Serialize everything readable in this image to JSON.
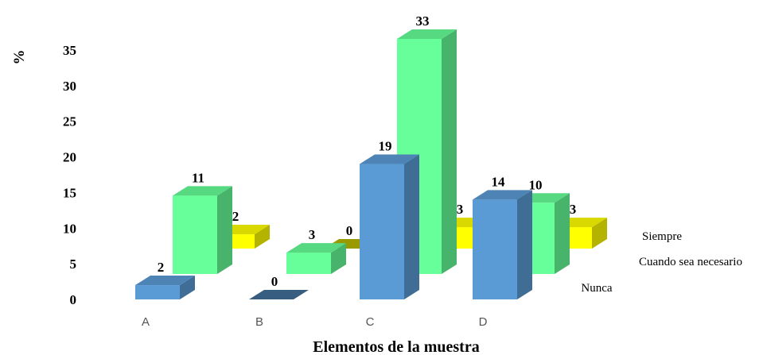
{
  "chart_data": {
    "type": "bar",
    "style": "3d-clustered-depth",
    "title": "",
    "xlabel": "Elementos de la muestra",
    "ylabel": "%",
    "categories": [
      "A",
      "B",
      "C",
      "D"
    ],
    "yticks": [
      "0",
      "5",
      "10",
      "15",
      "20",
      "25",
      "30",
      "35"
    ],
    "ylim": [
      0,
      35
    ],
    "grid": false,
    "legend": "series labels on depth axis, right",
    "series": [
      {
        "name": "Nunca",
        "values": [
          2,
          0,
          19,
          14
        ],
        "color": "#5b9bd5",
        "labels": [
          "2",
          "0",
          "19",
          "14"
        ]
      },
      {
        "name": "Cuando sea necesario",
        "values": [
          11,
          3,
          33,
          10
        ],
        "color": "#66ff99",
        "labels": [
          "11",
          "3",
          "33",
          "10"
        ]
      },
      {
        "name": "Siempre",
        "values": [
          2,
          0,
          3,
          3
        ],
        "color": "#ffff00",
        "labels": [
          "2",
          "0",
          "3",
          "3"
        ]
      }
    ]
  }
}
